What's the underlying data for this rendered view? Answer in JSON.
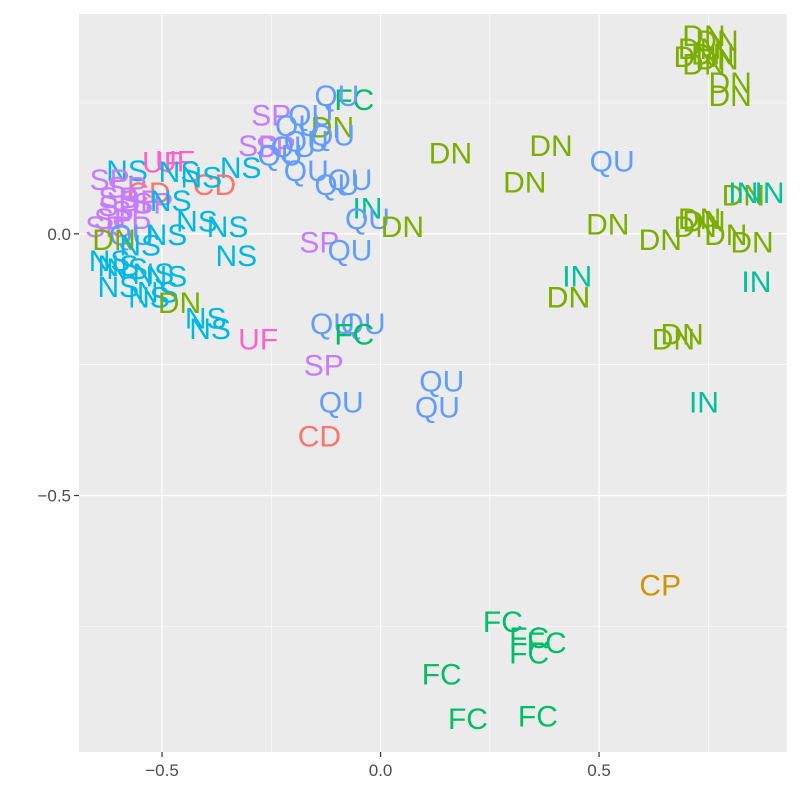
{
  "chart_data": {
    "type": "scatter",
    "title": "",
    "xlabel": "",
    "ylabel": "",
    "xlim": [
      -0.69,
      0.93
    ],
    "ylim": [
      -0.99,
      0.42
    ],
    "grid": true,
    "legend": "none",
    "x_ticks": [
      -0.5,
      0.0,
      0.5
    ],
    "x_tick_labels": [
      "−0.5",
      "0.0",
      "0.5"
    ],
    "y_ticks": [
      0.0,
      -0.5
    ],
    "y_tick_labels": [
      "0.0",
      "−0.5"
    ],
    "colors": {
      "CD": "#F8766D",
      "CP": "#CD9600",
      "DN": "#7CAE00",
      "FC": "#00BE67",
      "IN": "#00C19A",
      "NS": "#00B8E7",
      "QU": "#619CFF",
      "SP": "#C77CFF",
      "UF": "#FF61CC"
    },
    "points": [
      {
        "label": "DN",
        "x": 0.74,
        "y": 0.38
      },
      {
        "label": "DN",
        "x": 0.77,
        "y": 0.37
      },
      {
        "label": "DN",
        "x": 0.73,
        "y": 0.355
      },
      {
        "label": "DN",
        "x": 0.76,
        "y": 0.345
      },
      {
        "label": "DN",
        "x": 0.72,
        "y": 0.34
      },
      {
        "label": "DN",
        "x": 0.77,
        "y": 0.335
      },
      {
        "label": "DN",
        "x": 0.74,
        "y": 0.325
      },
      {
        "label": "DN",
        "x": 0.8,
        "y": 0.29
      },
      {
        "label": "DN",
        "x": 0.8,
        "y": 0.265
      },
      {
        "label": "FC",
        "x": -0.06,
        "y": 0.258
      },
      {
        "label": "QU",
        "x": -0.1,
        "y": 0.265
      },
      {
        "label": "SP",
        "x": -0.25,
        "y": 0.228
      },
      {
        "label": "QU",
        "x": -0.16,
        "y": 0.228
      },
      {
        "label": "DN",
        "x": -0.11,
        "y": 0.205
      },
      {
        "label": "QU",
        "x": -0.19,
        "y": 0.208
      },
      {
        "label": "QU",
        "x": -0.11,
        "y": 0.19
      },
      {
        "label": "QU",
        "x": -0.17,
        "y": 0.178
      },
      {
        "label": "SP",
        "x": -0.24,
        "y": 0.168
      },
      {
        "label": "SP",
        "x": -0.28,
        "y": 0.17
      },
      {
        "label": "QU",
        "x": -0.2,
        "y": 0.168
      },
      {
        "label": "QU",
        "x": -0.23,
        "y": 0.152
      },
      {
        "label": "QU",
        "x": -0.17,
        "y": 0.122
      },
      {
        "label": "NS",
        "x": -0.32,
        "y": 0.128
      },
      {
        "label": "NS",
        "x": -0.58,
        "y": 0.122
      },
      {
        "label": "UF",
        "x": -0.5,
        "y": 0.138
      },
      {
        "label": "UF",
        "x": -0.47,
        "y": 0.14
      },
      {
        "label": "NS",
        "x": -0.46,
        "y": 0.12
      },
      {
        "label": "CD",
        "x": -0.38,
        "y": 0.095
      },
      {
        "label": "NS",
        "x": -0.41,
        "y": 0.11
      },
      {
        "label": "QU",
        "x": -0.07,
        "y": 0.105
      },
      {
        "label": "QU",
        "x": -0.1,
        "y": 0.095
      },
      {
        "label": "DN",
        "x": 0.16,
        "y": 0.155
      },
      {
        "label": "DN",
        "x": 0.39,
        "y": 0.17
      },
      {
        "label": "QU",
        "x": 0.53,
        "y": 0.14
      },
      {
        "label": "DN",
        "x": 0.33,
        "y": 0.1
      },
      {
        "label": "SP",
        "x": -0.62,
        "y": 0.105
      },
      {
        "label": "SP",
        "x": -0.58,
        "y": 0.09
      },
      {
        "label": "CD",
        "x": -0.53,
        "y": 0.08
      },
      {
        "label": "SP",
        "x": -0.6,
        "y": 0.07
      },
      {
        "label": "SP",
        "x": -0.55,
        "y": 0.065
      },
      {
        "label": "SP",
        "x": -0.52,
        "y": 0.06
      },
      {
        "label": "SP",
        "x": -0.6,
        "y": 0.055
      },
      {
        "label": "SP",
        "x": -0.57,
        "y": 0.045
      },
      {
        "label": "NS",
        "x": -0.48,
        "y": 0.065
      },
      {
        "label": "NS",
        "x": -0.42,
        "y": 0.025
      },
      {
        "label": "NS",
        "x": -0.35,
        "y": 0.015
      },
      {
        "label": "SP",
        "x": -0.61,
        "y": 0.03
      },
      {
        "label": "SP",
        "x": -0.63,
        "y": 0.015
      },
      {
        "label": "SP",
        "x": -0.57,
        "y": 0.015
      },
      {
        "label": "IN",
        "x": -0.03,
        "y": 0.05
      },
      {
        "label": "QU",
        "x": -0.03,
        "y": 0.03
      },
      {
        "label": "DN",
        "x": 0.05,
        "y": 0.015
      },
      {
        "label": "DN",
        "x": 0.52,
        "y": 0.02
      },
      {
        "label": "DN",
        "x": 0.83,
        "y": 0.075
      },
      {
        "label": "IN",
        "x": 0.89,
        "y": 0.08
      },
      {
        "label": "IN",
        "x": 0.83,
        "y": 0.08
      },
      {
        "label": "DN",
        "x": 0.73,
        "y": 0.03
      },
      {
        "label": "DN",
        "x": 0.74,
        "y": 0.025
      },
      {
        "label": "DN",
        "x": 0.79,
        "y": 0.0
      },
      {
        "label": "DN",
        "x": 0.64,
        "y": -0.01
      },
      {
        "label": "DN",
        "x": 0.85,
        "y": -0.015
      },
      {
        "label": "DN",
        "x": 0.72,
        "y": 0.015
      },
      {
        "label": "QU",
        "x": -0.57,
        "y": 0.0
      },
      {
        "label": "DN",
        "x": -0.61,
        "y": -0.01
      },
      {
        "label": "NS",
        "x": -0.49,
        "y": 0.0
      },
      {
        "label": "NS",
        "x": -0.55,
        "y": -0.02
      },
      {
        "label": "SP",
        "x": -0.14,
        "y": -0.015
      },
      {
        "label": "QU",
        "x": -0.07,
        "y": -0.03
      },
      {
        "label": "NS",
        "x": -0.33,
        "y": -0.04
      },
      {
        "label": "NS",
        "x": -0.62,
        "y": -0.05
      },
      {
        "label": "NS",
        "x": -0.6,
        "y": -0.06
      },
      {
        "label": "NS",
        "x": -0.58,
        "y": -0.065
      },
      {
        "label": "NS",
        "x": -0.52,
        "y": -0.075
      },
      {
        "label": "NS",
        "x": -0.49,
        "y": -0.08
      },
      {
        "label": "NS",
        "x": -0.6,
        "y": -0.1
      },
      {
        "label": "NS",
        "x": -0.53,
        "y": -0.12
      },
      {
        "label": "NS",
        "x": -0.51,
        "y": -0.11
      },
      {
        "label": "IN",
        "x": 0.45,
        "y": -0.08
      },
      {
        "label": "DN",
        "x": 0.43,
        "y": -0.12
      },
      {
        "label": "DN",
        "x": 0.43,
        "y": -0.12
      },
      {
        "label": "IN",
        "x": 0.86,
        "y": -0.09
      },
      {
        "label": "DN",
        "x": -0.46,
        "y": -0.13
      },
      {
        "label": "NS",
        "x": -0.4,
        "y": -0.16
      },
      {
        "label": "NS",
        "x": -0.39,
        "y": -0.18
      },
      {
        "label": "QU",
        "x": -0.11,
        "y": -0.17
      },
      {
        "label": "QU",
        "x": -0.04,
        "y": -0.17
      },
      {
        "label": "FC",
        "x": -0.06,
        "y": -0.19
      },
      {
        "label": "DN",
        "x": 0.69,
        "y": -0.19
      },
      {
        "label": "DN",
        "x": 0.67,
        "y": -0.2
      },
      {
        "label": "UF",
        "x": -0.28,
        "y": -0.2
      },
      {
        "label": "SP",
        "x": -0.13,
        "y": -0.25
      },
      {
        "label": "QU",
        "x": 0.14,
        "y": -0.28
      },
      {
        "label": "QU",
        "x": 0.13,
        "y": -0.33
      },
      {
        "label": "QU",
        "x": -0.09,
        "y": -0.32
      },
      {
        "label": "IN",
        "x": 0.74,
        "y": -0.32
      },
      {
        "label": "CD",
        "x": -0.14,
        "y": -0.385
      },
      {
        "label": "CP",
        "x": 0.64,
        "y": -0.67
      },
      {
        "label": "FC",
        "x": 0.28,
        "y": -0.74
      },
      {
        "label": "FC",
        "x": 0.34,
        "y": -0.77
      },
      {
        "label": "FC",
        "x": 0.38,
        "y": -0.78
      },
      {
        "label": "FC",
        "x": 0.34,
        "y": -0.8
      },
      {
        "label": "FC",
        "x": 0.14,
        "y": -0.84
      },
      {
        "label": "FC",
        "x": 0.36,
        "y": -0.92
      },
      {
        "label": "FC",
        "x": 0.2,
        "y": -0.925
      }
    ]
  }
}
